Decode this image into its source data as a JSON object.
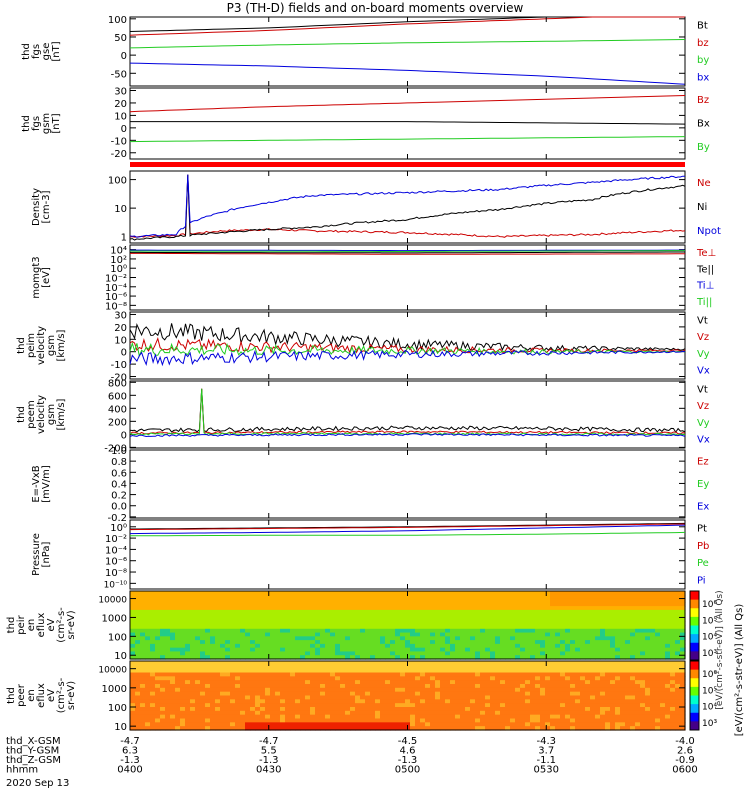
{
  "title": "P3 (TH-D) fields and on-board moments overview",
  "colors": {
    "black": "#000000",
    "red": "#cc0000",
    "green": "#22cc22",
    "blue": "#0000dd"
  },
  "panels": [
    {
      "id": "fgs-gse",
      "ylabel": [
        "thd",
        "fgs",
        "gse",
        "[nT]"
      ],
      "ticks": [
        "100",
        "50",
        "0",
        "-50"
      ],
      "tick_vals": [
        100,
        50,
        0,
        -50
      ],
      "ylim": [
        -85,
        105
      ],
      "legend": [
        {
          "text": "Bt",
          "color": "black"
        },
        {
          "text": "bz",
          "color": "red"
        },
        {
          "text": "by",
          "color": "green"
        },
        {
          "text": "bx",
          "color": "blue"
        }
      ]
    },
    {
      "id": "fgs-gsm",
      "ylabel": [
        "thd",
        "fgs",
        "gsm",
        "[nT]"
      ],
      "ticks": [
        "30",
        "20",
        "10",
        "0",
        "-10",
        "-20"
      ],
      "tick_vals": [
        30,
        20,
        10,
        0,
        -10,
        -20
      ],
      "ylim": [
        -25,
        32
      ],
      "legend": [
        {
          "text": "Bz",
          "color": "red"
        },
        {
          "text": "Bx",
          "color": "black"
        },
        {
          "text": "By",
          "color": "green"
        }
      ]
    },
    {
      "id": "mode-bar",
      "ylabel": [],
      "ticks": [],
      "tick_vals": [],
      "ylim": [
        0,
        1
      ],
      "legend": []
    },
    {
      "id": "density",
      "ylabel": [
        "Density",
        "[cm-3]"
      ],
      "ticks": [
        "100",
        "10",
        "1"
      ],
      "tick_vals": [
        100,
        10,
        1
      ],
      "log": true,
      "ylim": [
        0.6,
        200
      ],
      "legend": [
        {
          "text": "Ne",
          "color": "red"
        },
        {
          "text": "Ni",
          "color": "black"
        },
        {
          "text": "Npot",
          "color": "blue"
        }
      ]
    },
    {
      "id": "temperature",
      "ylabel": [
        "momgt3",
        "[eV]"
      ],
      "ticks": [
        "10⁴",
        "10²",
        "10⁰",
        "10⁻²",
        "10⁻⁴",
        "10⁻⁶",
        "10⁻⁸"
      ],
      "tick_vals": [
        4,
        2,
        0,
        -2,
        -4,
        -6,
        -8
      ],
      "ylim": [
        -9,
        5
      ],
      "legend": [
        {
          "text": "Te⊥",
          "color": "red"
        },
        {
          "text": "Te||",
          "color": "black"
        },
        {
          "text": "Ti⊥",
          "color": "blue"
        },
        {
          "text": "Ti||",
          "color": "green"
        }
      ]
    },
    {
      "id": "peim-velocity",
      "ylabel": [
        "thd",
        "peim",
        "velocity",
        "gsm",
        "[km/s]"
      ],
      "ticks": [
        "30",
        "20",
        "10",
        "0",
        "-10",
        "-20"
      ],
      "tick_vals": [
        30,
        20,
        10,
        0,
        -10,
        -20
      ],
      "ylim": [
        -22,
        32
      ],
      "legend": [
        {
          "text": "Vt",
          "color": "black"
        },
        {
          "text": "Vz",
          "color": "red"
        },
        {
          "text": "Vy",
          "color": "green"
        },
        {
          "text": "Vx",
          "color": "blue"
        }
      ]
    },
    {
      "id": "peem-velocity",
      "ylabel": [
        "thd",
        "peem",
        "velocity",
        "gsm",
        "[km/s]"
      ],
      "ticks": [
        "800",
        "600",
        "400",
        "200",
        "0",
        "-200"
      ],
      "tick_vals": [
        800,
        600,
        400,
        200,
        0,
        -200
      ],
      "ylim": [
        -210,
        820
      ],
      "legend": [
        {
          "text": "Vt",
          "color": "black"
        },
        {
          "text": "Vz",
          "color": "red"
        },
        {
          "text": "Vy",
          "color": "green"
        },
        {
          "text": "Vx",
          "color": "blue"
        }
      ]
    },
    {
      "id": "efield",
      "ylabel": [
        "E=-VxB",
        "[mV/m]"
      ],
      "ticks": [
        "1.0",
        "0.8",
        "0.6",
        "0.4",
        "0.2",
        "0.0",
        "-0.2"
      ],
      "tick_vals": [
        1,
        0.8,
        0.6,
        0.4,
        0.2,
        0,
        -0.2
      ],
      "ylim": [
        -0.22,
        1.0
      ],
      "legend": [
        {
          "text": "Ez",
          "color": "red"
        },
        {
          "text": "Ey",
          "color": "green"
        },
        {
          "text": "Ex",
          "color": "blue"
        }
      ]
    },
    {
      "id": "pressure",
      "ylabel": [
        "Pressure",
        "[nPa]"
      ],
      "ticks": [
        "10⁰",
        "10⁻²",
        "10⁻⁴",
        "10⁻⁶",
        "10⁻⁸",
        "10⁻¹⁰"
      ],
      "tick_vals": [
        0,
        -2,
        -4,
        -6,
        -8,
        -10
      ],
      "ylim": [
        -11,
        1.2
      ],
      "legend": [
        {
          "text": "Pt",
          "color": "black"
        },
        {
          "text": "Pb",
          "color": "red"
        },
        {
          "text": "Pe",
          "color": "green"
        },
        {
          "text": "Pi",
          "color": "blue"
        }
      ]
    },
    {
      "id": "peir-eflux",
      "ylabel": [
        "thd",
        "peir",
        "en",
        "eflux",
        "eV",
        "(cm²-s-",
        "sr-eV)"
      ],
      "ticks": [
        "10000",
        "1000",
        "100",
        "10"
      ],
      "tick_vals": [
        4,
        3,
        2,
        1
      ],
      "ylim": [
        0.8,
        4.4
      ],
      "legend": []
    },
    {
      "id": "peer-eflux",
      "ylabel": [
        "thd",
        "peer",
        "en",
        "eflux",
        "eV",
        "(cm²-s-",
        "sr-eV)"
      ],
      "ticks": [
        "10000",
        "1000",
        "100",
        "10"
      ],
      "tick_vals": [
        4,
        3,
        2,
        1
      ],
      "ylim": [
        0.8,
        4.4
      ],
      "legend": []
    }
  ],
  "colorbar": {
    "ticks": [
      "10⁶",
      "10⁵",
      "10⁴",
      "10³"
    ],
    "label": "[eV/(cm²-s-str-eV)] (All Qs)",
    "overlay": "[eV/(cm²-s-str-eV)] (All Qs)"
  },
  "xaxis": {
    "rows": [
      {
        "label": "thd_X-GSM",
        "values": [
          "-4.7",
          "-4.7",
          "-4.5",
          "-4.3",
          "-4.0"
        ]
      },
      {
        "label": "thd_Y-GSM",
        "values": [
          "6.3",
          "5.5",
          "4.6",
          "3.7",
          "2.6"
        ]
      },
      {
        "label": "thd_Z-GSM",
        "values": [
          "-1.3",
          "-1.3",
          "-1.3",
          "-1.1",
          "-0.9"
        ]
      },
      {
        "label": "hhmm",
        "values": [
          "0400",
          "0430",
          "0500",
          "0530",
          "0600"
        ]
      }
    ],
    "date": "2020 Sep 13"
  },
  "chart_data": [
    {
      "type": "line",
      "panel": "fgs-gse",
      "x": [
        0,
        30,
        60,
        90,
        120
      ],
      "xlabel": "hhmm",
      "series": [
        {
          "name": "Bt",
          "values": [
            65,
            75,
            92,
            105,
            120
          ]
        },
        {
          "name": "bz",
          "values": [
            55,
            68,
            86,
            100,
            115
          ]
        },
        {
          "name": "by",
          "values": [
            20,
            28,
            34,
            38,
            43
          ]
        },
        {
          "name": "bx",
          "values": [
            -22,
            -30,
            -42,
            -58,
            -80
          ]
        }
      ]
    },
    {
      "type": "line",
      "panel": "fgs-gsm",
      "x": [
        0,
        30,
        60,
        90,
        120
      ],
      "series": [
        {
          "name": "Bz",
          "values": [
            13,
            17,
            20,
            23,
            26
          ]
        },
        {
          "name": "Bx",
          "values": [
            5,
            5,
            5,
            4,
            3
          ]
        },
        {
          "name": "By",
          "values": [
            -11,
            -10,
            -9,
            -8,
            -7
          ]
        }
      ]
    },
    {
      "type": "line",
      "panel": "density",
      "x": [
        0,
        10,
        20,
        30,
        40,
        60,
        80,
        100,
        120
      ],
      "series": [
        {
          "name": "Ne",
          "values": [
            1,
            1.1,
            1.6,
            1.8,
            1.6,
            1.4,
            1.0,
            1.2,
            1.7
          ]
        },
        {
          "name": "Ni",
          "values": [
            0.8,
            1.0,
            1.4,
            1.8,
            2.2,
            4,
            9,
            20,
            60
          ]
        },
        {
          "name": "Npot",
          "values": [
            1,
            1.2,
            7,
            16,
            28,
            35,
            45,
            80,
            130
          ]
        }
      ]
    },
    {
      "type": "line",
      "panel": "temperature",
      "x": [
        0,
        60,
        120
      ],
      "series": [
        {
          "name": "Te⊥",
          "values": [
            3.2,
            3.0,
            3.1
          ]
        },
        {
          "name": "Te||",
          "values": [
            3.4,
            3.3,
            3.5
          ]
        },
        {
          "name": "Ti⊥",
          "values": [
            3.9,
            3.8,
            3.9
          ]
        },
        {
          "name": "Ti||",
          "values": [
            3.7,
            3.6,
            3.8
          ]
        }
      ]
    },
    {
      "type": "line",
      "panel": "peim-velocity",
      "x": [
        0,
        30,
        60,
        90,
        120
      ],
      "series": [
        {
          "name": "Vt",
          "values": [
            18,
            12,
            6,
            3,
            2
          ]
        },
        {
          "name": "Vz",
          "values": [
            6,
            4,
            2,
            1,
            1
          ]
        },
        {
          "name": "Vy",
          "values": [
            2,
            1,
            1,
            0,
            0
          ]
        },
        {
          "name": "Vx",
          "values": [
            -6,
            -4,
            -2,
            -1,
            0
          ]
        }
      ]
    },
    {
      "type": "line",
      "panel": "peem-velocity",
      "x": [
        0,
        30,
        60,
        90,
        120
      ],
      "series": [
        {
          "name": "Vt",
          "values": [
            60,
            80,
            100,
            90,
            60
          ]
        },
        {
          "name": "Vz",
          "values": [
            20,
            30,
            40,
            30,
            20
          ]
        },
        {
          "name": "Vy",
          "values": [
            5,
            10,
            10,
            5,
            0
          ]
        },
        {
          "name": "Vx",
          "values": [
            -20,
            -10,
            0,
            -10,
            -20
          ]
        }
      ]
    },
    {
      "type": "line",
      "panel": "pressure",
      "x": [
        0,
        30,
        60,
        90,
        120
      ],
      "series": [
        {
          "name": "Pt",
          "values": [
            -0.4,
            -0.2,
            0,
            0.3,
            0.6
          ]
        },
        {
          "name": "Pb",
          "values": [
            -0.5,
            -0.3,
            -0.1,
            0.2,
            0.5
          ]
        },
        {
          "name": "Pe",
          "values": [
            -1.6,
            -1.5,
            -1.5,
            -1.3,
            -1.0
          ]
        },
        {
          "name": "Pi",
          "values": [
            -1.2,
            -1.0,
            -0.7,
            -0.2,
            0.3
          ]
        }
      ]
    },
    {
      "type": "heatmap",
      "panel": "peir-eflux",
      "ylabel": "eflux eV/(cm²-s-sr-eV)",
      "energy_range": [
        5,
        20000
      ]
    },
    {
      "type": "heatmap",
      "panel": "peer-eflux",
      "ylabel": "eflux eV/(cm²-s-sr-eV)",
      "energy_range": [
        5,
        20000
      ]
    }
  ]
}
